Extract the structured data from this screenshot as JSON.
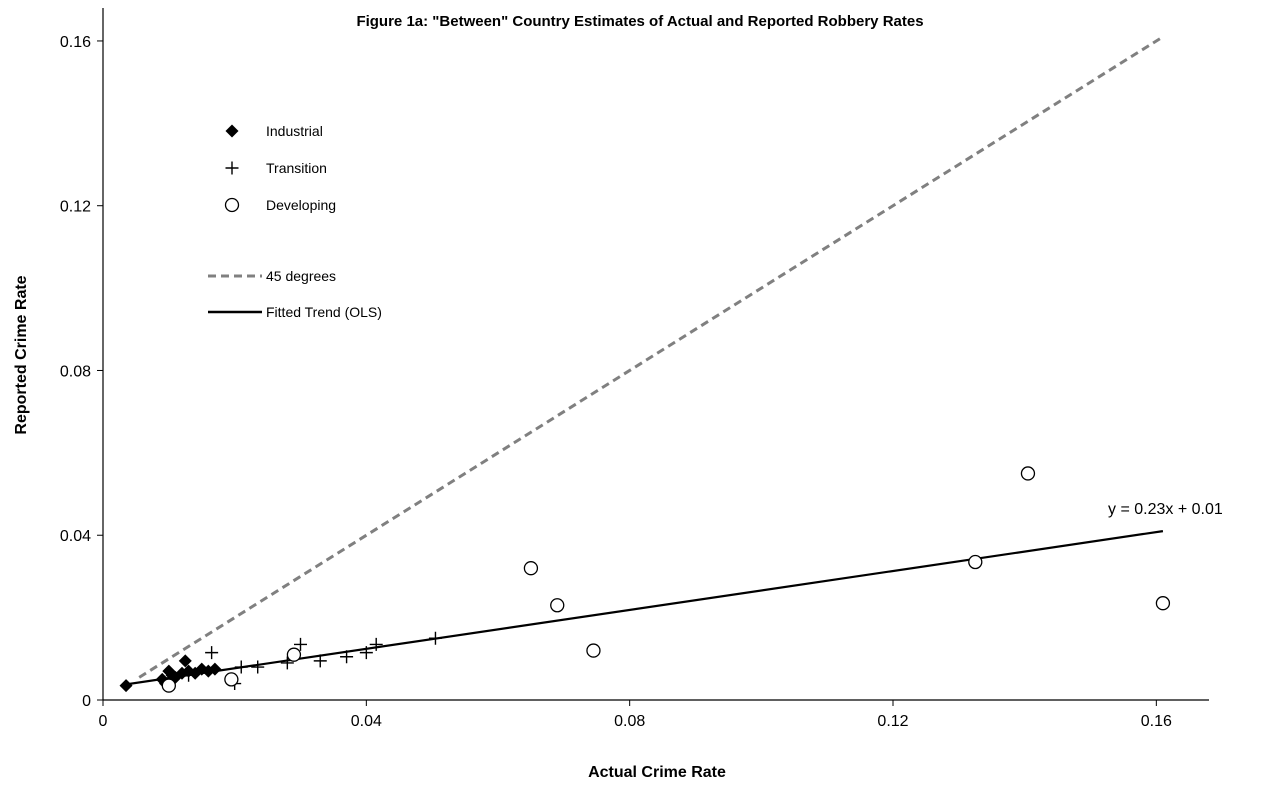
{
  "chart_data": {
    "type": "scatter",
    "title": "Figure 1a: \"Between\" Country Estimates of Actual and Reported Robbery Rates",
    "xlabel": "Actual Crime Rate",
    "ylabel": "Reported Crime Rate",
    "xlim": [
      0,
      0.168
    ],
    "ylim": [
      0,
      0.168
    ],
    "xticks": [
      0,
      0.04,
      0.08,
      0.12,
      0.16
    ],
    "xtick_labels": [
      "0",
      "0.04",
      "0.08",
      "0.12",
      "0.16"
    ],
    "yticks": [
      0,
      0.04,
      0.08,
      0.12,
      0.16
    ],
    "ytick_labels": [
      "0",
      "0.04",
      "0.08",
      "0.12",
      "0.16"
    ],
    "grid": false,
    "legend_position": "top-left",
    "series": [
      {
        "name": "Industrial",
        "marker": "diamond",
        "color": "#000000",
        "points": [
          [
            0.0035,
            0.0035
          ],
          [
            0.009,
            0.005
          ],
          [
            0.0095,
            0.004
          ],
          [
            0.01,
            0.007
          ],
          [
            0.0105,
            0.006
          ],
          [
            0.011,
            0.0055
          ],
          [
            0.012,
            0.0065
          ],
          [
            0.0125,
            0.0095
          ],
          [
            0.013,
            0.007
          ],
          [
            0.014,
            0.0065
          ],
          [
            0.015,
            0.0075
          ],
          [
            0.016,
            0.007
          ],
          [
            0.017,
            0.0075
          ],
          [
            0.01,
            0.0035
          ]
        ]
      },
      {
        "name": "Transition",
        "marker": "plus",
        "color": "#000000",
        "points": [
          [
            0.013,
            0.006
          ],
          [
            0.0165,
            0.0115
          ],
          [
            0.02,
            0.004
          ],
          [
            0.021,
            0.008
          ],
          [
            0.0235,
            0.008
          ],
          [
            0.028,
            0.009
          ],
          [
            0.03,
            0.0135
          ],
          [
            0.033,
            0.0095
          ],
          [
            0.037,
            0.0105
          ],
          [
            0.04,
            0.0115
          ],
          [
            0.0415,
            0.0135
          ],
          [
            0.0505,
            0.015
          ]
        ]
      },
      {
        "name": "Developing",
        "marker": "circle",
        "color": "#000000",
        "points": [
          [
            0.01,
            0.0035
          ],
          [
            0.0195,
            0.005
          ],
          [
            0.029,
            0.011
          ],
          [
            0.065,
            0.032
          ],
          [
            0.069,
            0.023
          ],
          [
            0.0745,
            0.012
          ],
          [
            0.1325,
            0.0335
          ],
          [
            0.1405,
            0.055
          ],
          [
            0.161,
            0.0235
          ]
        ]
      }
    ],
    "lines": [
      {
        "name": "45 degrees",
        "style": "dashed",
        "color": "#808080",
        "from": [
          0.0055,
          0.0055
        ],
        "to": [
          0.161,
          0.161
        ]
      },
      {
        "name": "Fitted Trend (OLS)",
        "style": "solid",
        "color": "#000000",
        "from": [
          0.0035,
          0.0038
        ],
        "to": [
          0.161,
          0.041
        ]
      }
    ],
    "annotations": [
      {
        "text": "y = 0.23x + 0.01"
      }
    ]
  }
}
